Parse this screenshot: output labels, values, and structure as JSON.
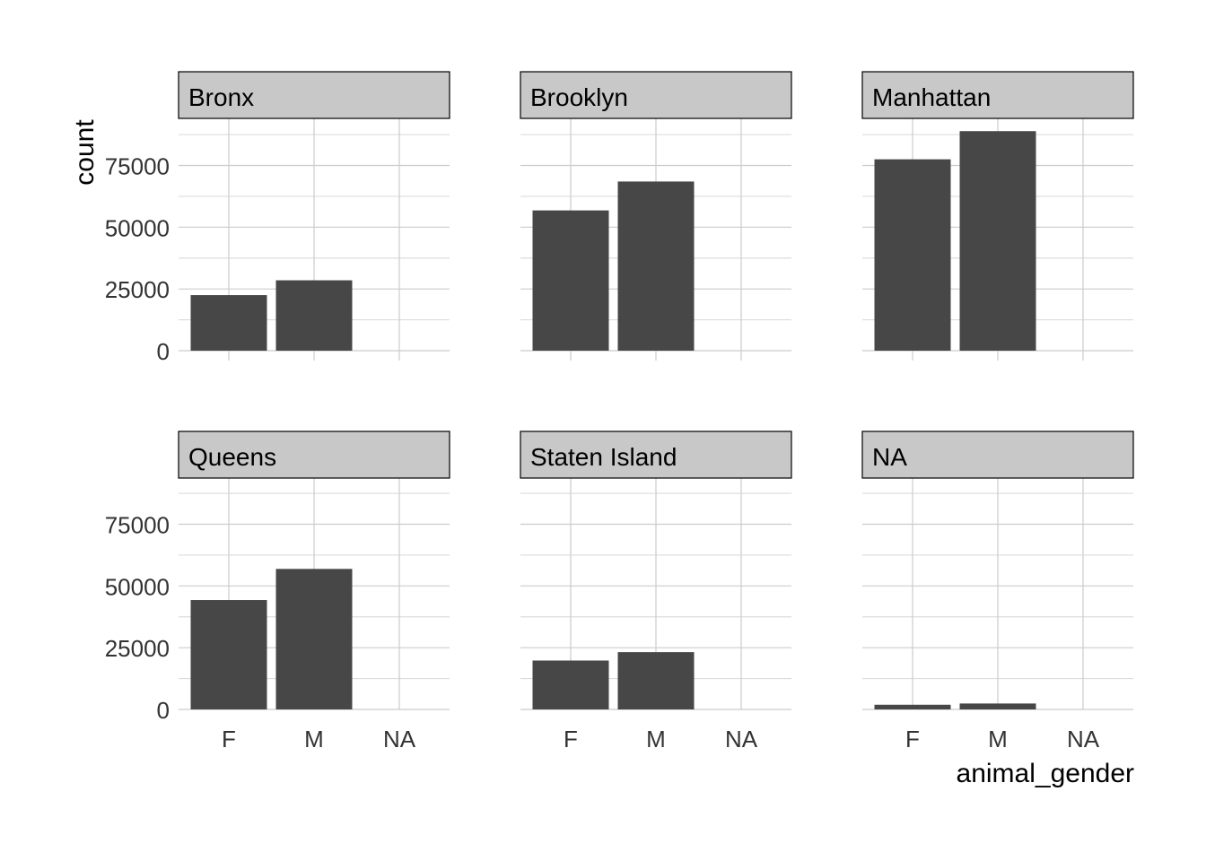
{
  "chart_data": {
    "type": "bar",
    "facet_by": "borough",
    "xlabel": "animal_gender",
    "ylabel": "count",
    "categories": [
      "F",
      "M",
      "NA"
    ],
    "y_ticks": [
      0,
      25000,
      50000,
      75000
    ],
    "ylim": [
      0,
      89000
    ],
    "grid": true,
    "bar_color": "#474747",
    "strip_color": "#c8c8c8",
    "panels": [
      {
        "label": "Bronx",
        "values": [
          22500,
          28500,
          0
        ]
      },
      {
        "label": "Brooklyn",
        "values": [
          56800,
          68500,
          0
        ]
      },
      {
        "label": "Manhattan",
        "values": [
          77500,
          88900,
          0
        ]
      },
      {
        "label": "Queens",
        "values": [
          44300,
          56900,
          0
        ]
      },
      {
        "label": "Staten Island",
        "values": [
          19800,
          23200,
          0
        ]
      },
      {
        "label": "NA",
        "values": [
          1900,
          2400,
          0
        ]
      }
    ]
  }
}
